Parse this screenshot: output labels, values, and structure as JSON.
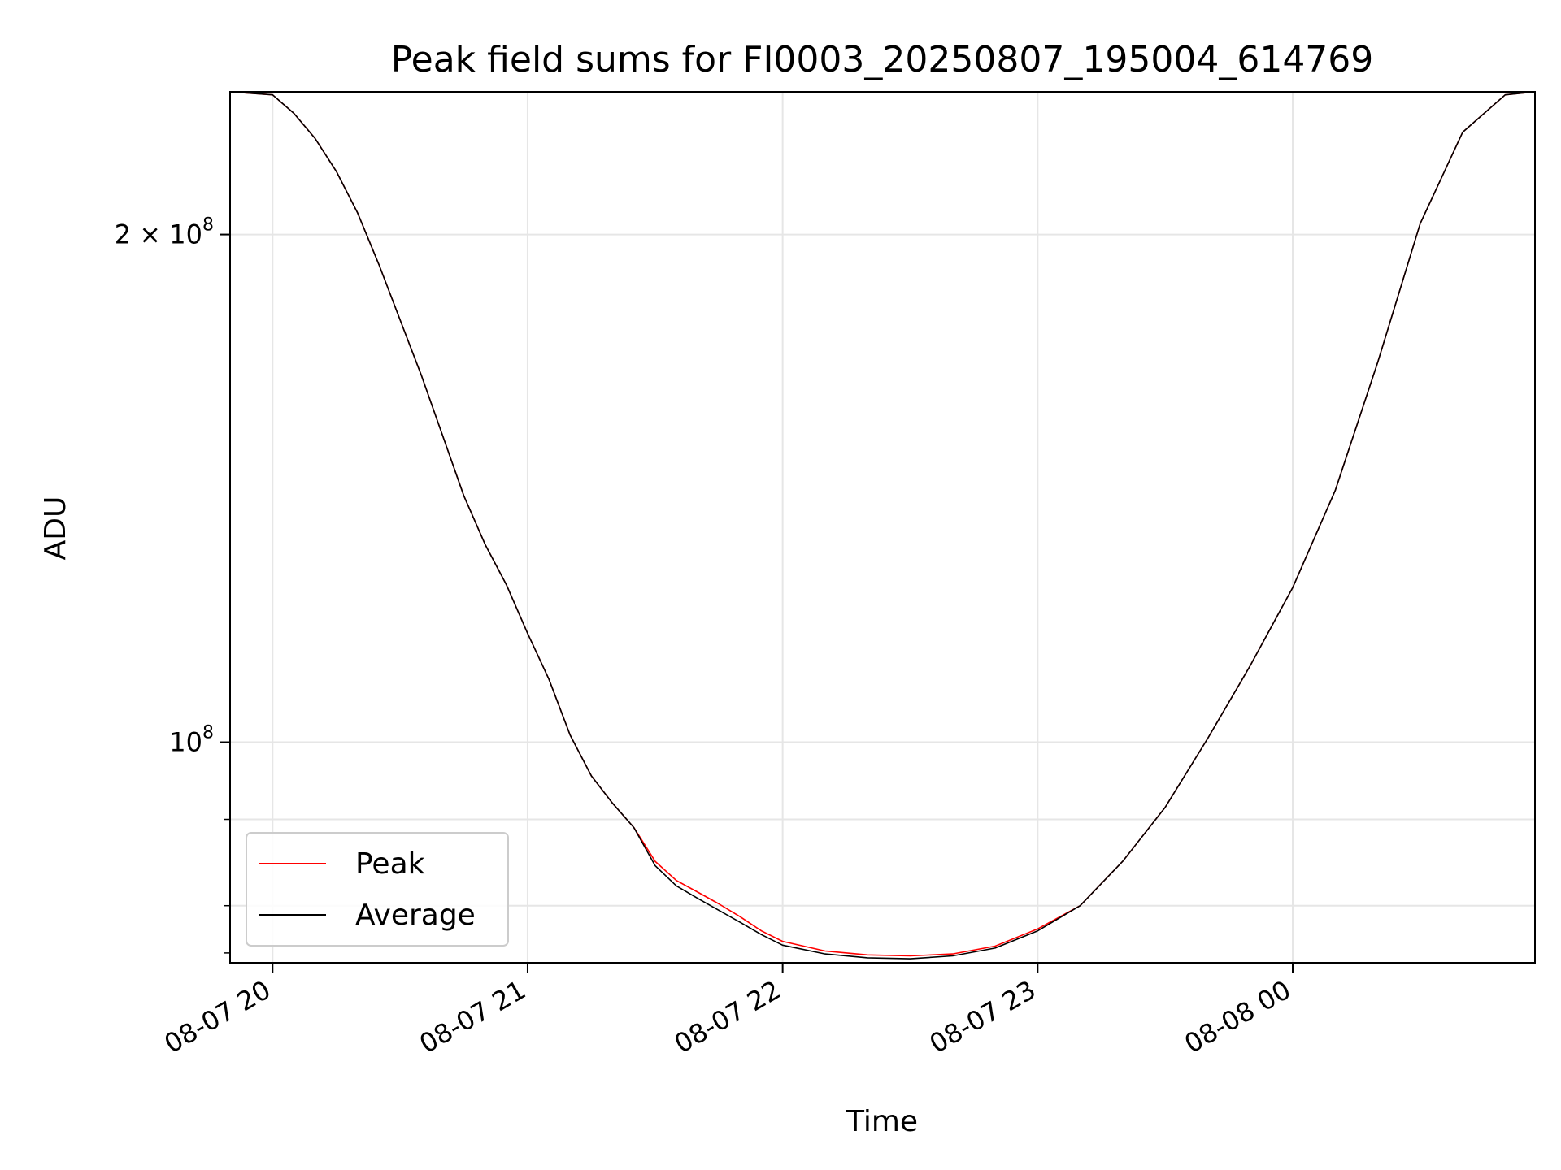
{
  "chart_data": {
    "type": "line",
    "title": "Peak field sums for FI0003_20250807_195004_614769",
    "xlabel": "Time",
    "ylabel": "ADU",
    "xscale": "time",
    "yscale": "log",
    "xlim": [
      "2025-08-07 19:50",
      "2025-08-08 00:57"
    ],
    "ylim": [
      74000000,
      243000000
    ],
    "grid": true,
    "legend_position": "lower-left",
    "xticks": [
      {
        "value": "2025-08-07 20:00",
        "label": "08-07 20"
      },
      {
        "value": "2025-08-07 21:00",
        "label": "08-07 21"
      },
      {
        "value": "2025-08-07 22:00",
        "label": "08-07 22"
      },
      {
        "value": "2025-08-07 23:00",
        "label": "08-07 23"
      },
      {
        "value": "2025-08-08 00:00",
        "label": "08-08 00"
      }
    ],
    "yticks_major": [
      {
        "value": 100000000,
        "label_base": "10",
        "label_exp": "8",
        "label_prefix": ""
      },
      {
        "value": 200000000,
        "label_base": "10",
        "label_exp": "8",
        "label_prefix": "2 × "
      }
    ],
    "yticks_minor": [
      80000000,
      90000000
    ],
    "yticks_minor_unlabeled": [
      75000000
    ],
    "series": [
      {
        "name": "Peak",
        "color": "#ff0000",
        "points": [
          [
            "2025-08-07 19:50",
            243000000
          ],
          [
            "2025-08-07 20:00",
            242000000
          ],
          [
            "2025-08-07 20:05",
            236000000
          ],
          [
            "2025-08-07 20:10",
            228000000
          ],
          [
            "2025-08-07 20:15",
            218000000
          ],
          [
            "2025-08-07 20:20",
            206000000
          ],
          [
            "2025-08-07 20:25",
            192000000
          ],
          [
            "2025-08-07 20:30",
            178000000
          ],
          [
            "2025-08-07 20:35",
            165000000
          ],
          [
            "2025-08-07 20:40",
            152000000
          ],
          [
            "2025-08-07 20:45",
            140000000
          ],
          [
            "2025-08-07 20:50",
            131000000
          ],
          [
            "2025-08-07 20:55",
            124000000
          ],
          [
            "2025-08-07 21:00",
            116000000
          ],
          [
            "2025-08-07 21:05",
            109000000
          ],
          [
            "2025-08-07 21:10",
            101000000
          ],
          [
            "2025-08-07 21:15",
            95500000
          ],
          [
            "2025-08-07 21:20",
            92000000
          ],
          [
            "2025-08-07 21:25",
            89000000
          ],
          [
            "2025-08-07 21:30",
            85000000
          ],
          [
            "2025-08-07 21:35",
            82800000
          ],
          [
            "2025-08-07 21:40",
            81500000
          ],
          [
            "2025-08-07 21:45",
            80200000
          ],
          [
            "2025-08-07 21:50",
            78800000
          ],
          [
            "2025-08-07 21:55",
            77300000
          ],
          [
            "2025-08-07 22:00",
            76200000
          ],
          [
            "2025-08-07 22:10",
            75200000
          ],
          [
            "2025-08-07 22:20",
            74800000
          ],
          [
            "2025-08-07 22:30",
            74700000
          ],
          [
            "2025-08-07 22:40",
            74900000
          ],
          [
            "2025-08-07 22:50",
            75700000
          ],
          [
            "2025-08-07 23:00",
            77500000
          ],
          [
            "2025-08-07 23:10",
            80000000
          ],
          [
            "2025-08-07 23:20",
            85000000
          ],
          [
            "2025-08-07 23:30",
            91500000
          ],
          [
            "2025-08-07 23:40",
            100500000
          ],
          [
            "2025-08-07 23:50",
            111000000
          ],
          [
            "2025-08-08 00:00",
            123500000
          ],
          [
            "2025-08-08 00:10",
            141000000
          ],
          [
            "2025-08-08 00:20",
            168000000
          ],
          [
            "2025-08-08 00:30",
            203000000
          ],
          [
            "2025-08-08 00:40",
            230000000
          ],
          [
            "2025-08-08 00:50",
            242000000
          ],
          [
            "2025-08-08 00:57",
            243000000
          ]
        ]
      },
      {
        "name": "Average",
        "color": "#000000",
        "points": [
          [
            "2025-08-07 19:50",
            243000000
          ],
          [
            "2025-08-07 20:00",
            242000000
          ],
          [
            "2025-08-07 20:05",
            236000000
          ],
          [
            "2025-08-07 20:10",
            228000000
          ],
          [
            "2025-08-07 20:15",
            218000000
          ],
          [
            "2025-08-07 20:20",
            206000000
          ],
          [
            "2025-08-07 20:25",
            192000000
          ],
          [
            "2025-08-07 20:30",
            178000000
          ],
          [
            "2025-08-07 20:35",
            165000000
          ],
          [
            "2025-08-07 20:40",
            152000000
          ],
          [
            "2025-08-07 20:45",
            140000000
          ],
          [
            "2025-08-07 20:50",
            131000000
          ],
          [
            "2025-08-07 20:55",
            124000000
          ],
          [
            "2025-08-07 21:00",
            116000000
          ],
          [
            "2025-08-07 21:05",
            109000000
          ],
          [
            "2025-08-07 21:10",
            101000000
          ],
          [
            "2025-08-07 21:15",
            95500000
          ],
          [
            "2025-08-07 21:20",
            92000000
          ],
          [
            "2025-08-07 21:25",
            89000000
          ],
          [
            "2025-08-07 21:30",
            84500000
          ],
          [
            "2025-08-07 21:35",
            82200000
          ],
          [
            "2025-08-07 21:40",
            80800000
          ],
          [
            "2025-08-07 21:45",
            79500000
          ],
          [
            "2025-08-07 21:50",
            78200000
          ],
          [
            "2025-08-07 21:55",
            76900000
          ],
          [
            "2025-08-07 22:00",
            75800000
          ],
          [
            "2025-08-07 22:10",
            74900000
          ],
          [
            "2025-08-07 22:20",
            74500000
          ],
          [
            "2025-08-07 22:30",
            74400000
          ],
          [
            "2025-08-07 22:40",
            74700000
          ],
          [
            "2025-08-07 22:50",
            75500000
          ],
          [
            "2025-08-07 23:00",
            77300000
          ],
          [
            "2025-08-07 23:10",
            80000000
          ],
          [
            "2025-08-07 23:20",
            85000000
          ],
          [
            "2025-08-07 23:30",
            91500000
          ],
          [
            "2025-08-07 23:40",
            100500000
          ],
          [
            "2025-08-07 23:50",
            111000000
          ],
          [
            "2025-08-08 00:00",
            123500000
          ],
          [
            "2025-08-08 00:10",
            141000000
          ],
          [
            "2025-08-08 00:20",
            168000000
          ],
          [
            "2025-08-08 00:30",
            203000000
          ],
          [
            "2025-08-08 00:40",
            230000000
          ],
          [
            "2025-08-08 00:50",
            242000000
          ],
          [
            "2025-08-08 00:57",
            243000000
          ]
        ]
      }
    ]
  }
}
